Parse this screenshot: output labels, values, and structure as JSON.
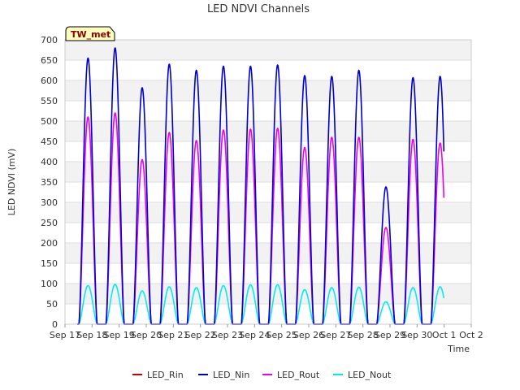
{
  "chart_data": {
    "type": "line",
    "title": "LED NDVI Channels",
    "xlabel": "Time",
    "ylabel": "LED NDVI (mV)",
    "badge": "TW_met",
    "ylim": [
      0,
      700
    ],
    "yticks": [
      0,
      50,
      100,
      150,
      200,
      250,
      300,
      350,
      400,
      450,
      500,
      550,
      600,
      650,
      700
    ],
    "xlim": [
      17,
      32
    ],
    "xticks": [
      {
        "x": 17,
        "label": "Sep 17"
      },
      {
        "x": 18,
        "label": "Sep 18"
      },
      {
        "x": 19,
        "label": "Sep 19"
      },
      {
        "x": 20,
        "label": "Sep 20"
      },
      {
        "x": 21,
        "label": "Sep 21"
      },
      {
        "x": 22,
        "label": "Sep 22"
      },
      {
        "x": 23,
        "label": "Sep 23"
      },
      {
        "x": 24,
        "label": "Sep 24"
      },
      {
        "x": 25,
        "label": "Sep 25"
      },
      {
        "x": 26,
        "label": "Sep 26"
      },
      {
        "x": 27,
        "label": "Sep 27"
      },
      {
        "x": 28,
        "label": "Sep 28"
      },
      {
        "x": 29,
        "label": "Sep 29"
      },
      {
        "x": 30,
        "label": "Sep 30"
      },
      {
        "x": 31,
        "label": "Oct 1"
      },
      {
        "x": 32,
        "label": "Oct 2"
      }
    ],
    "day_peaks": [
      {
        "center": 17.85,
        "Nin": 655,
        "Rout": 510,
        "Nout": 95
      },
      {
        "center": 18.85,
        "Nin": 680,
        "Rout": 520,
        "Nout": 98
      },
      {
        "center": 19.85,
        "Nin": 582,
        "Rout": 405,
        "Nout": 82
      },
      {
        "center": 20.85,
        "Nin": 640,
        "Rout": 472,
        "Nout": 92
      },
      {
        "center": 21.85,
        "Nin": 625,
        "Rout": 452,
        "Nout": 90
      },
      {
        "center": 22.85,
        "Nin": 635,
        "Rout": 478,
        "Nout": 95
      },
      {
        "center": 23.85,
        "Nin": 635,
        "Rout": 480,
        "Nout": 97
      },
      {
        "center": 24.85,
        "Nin": 638,
        "Rout": 482,
        "Nout": 97
      },
      {
        "center": 25.85,
        "Nin": 612,
        "Rout": 435,
        "Nout": 85
      },
      {
        "center": 26.85,
        "Nin": 610,
        "Rout": 460,
        "Nout": 90
      },
      {
        "center": 27.85,
        "Nin": 625,
        "Rout": 460,
        "Nout": 91
      },
      {
        "center": 28.85,
        "Nin": 338,
        "Rout": 238,
        "Nout": 55
      },
      {
        "center": 29.85,
        "Nin": 607,
        "Rout": 455,
        "Nout": 90
      },
      {
        "center": 30.85,
        "Nin": 610,
        "Rout": 446,
        "Nout": 92
      }
    ],
    "series": [
      {
        "name": "LED_Rin",
        "color": "#cc0000"
      },
      {
        "name": "LED_Nin",
        "color": "#0000cc"
      },
      {
        "name": "LED_Rout",
        "color": "#ee00ee"
      },
      {
        "name": "LED_Nout",
        "color": "#00eeee"
      }
    ],
    "grid": true,
    "legend_position": "bottom"
  }
}
